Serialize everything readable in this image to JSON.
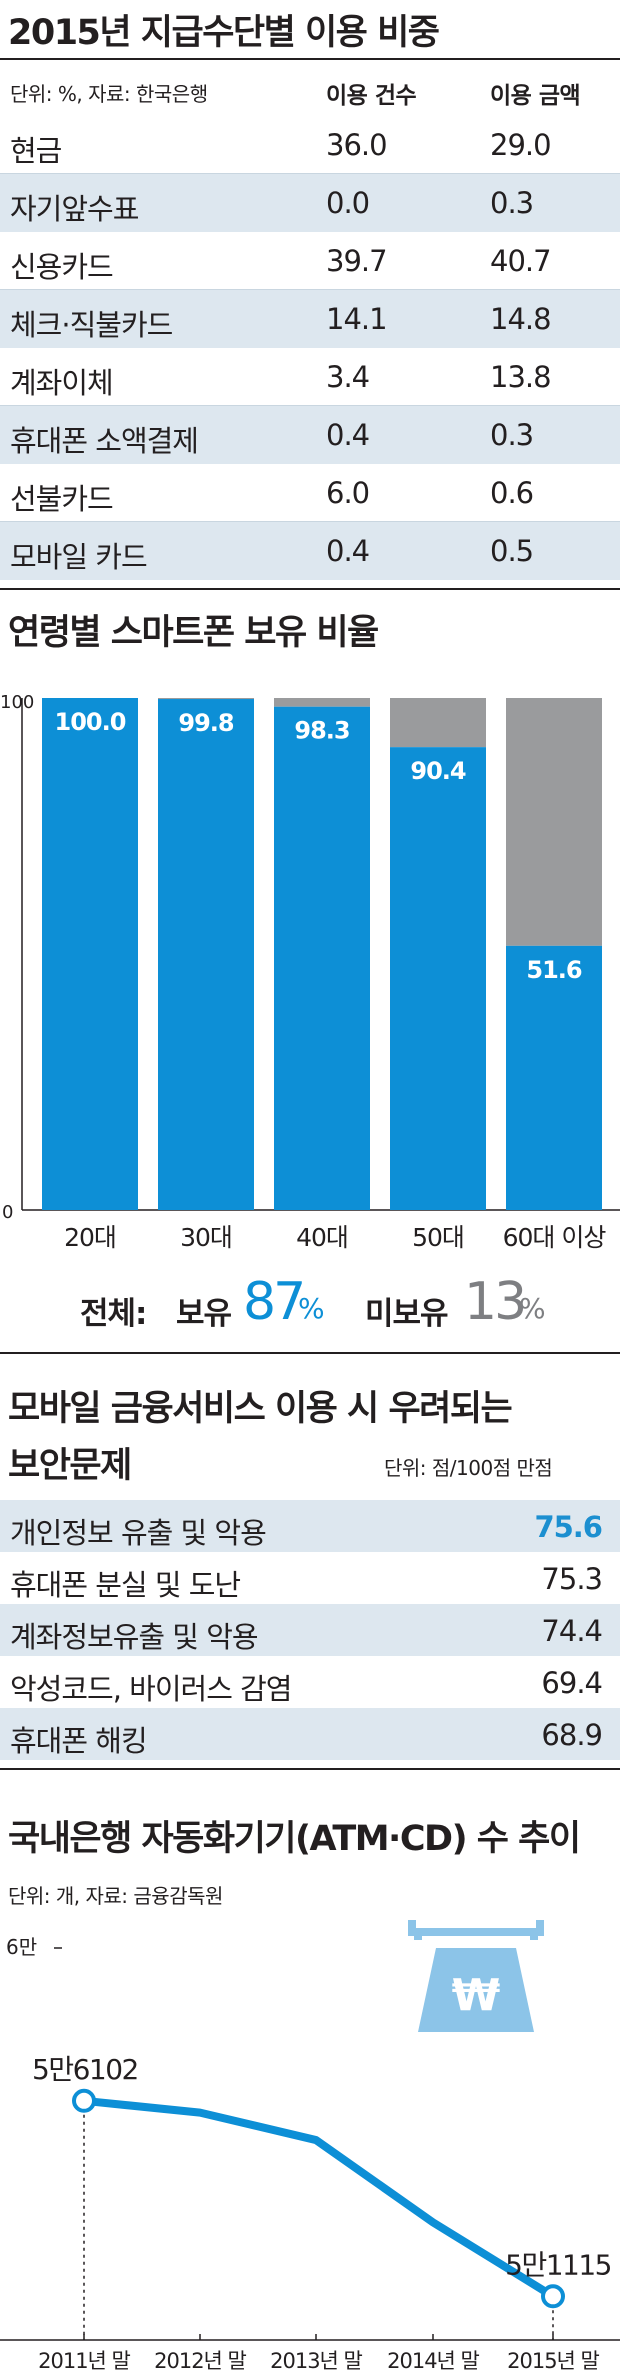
{
  "table1": {
    "title": "2015년 지급수단별 이용 비중",
    "source": "단위: %, 자료: 한국은행",
    "col1": "이용 건수",
    "col2": "이용 금액",
    "rows": [
      {
        "label": "현금",
        "count": "36.0",
        "amount": "29.0"
      },
      {
        "label": "자기앞수표",
        "count": "0.0",
        "amount": "0.3"
      },
      {
        "label": "신용카드",
        "count": "39.7",
        "amount": "40.7"
      },
      {
        "label": "체크·직불카드",
        "count": "14.1",
        "amount": "14.8"
      },
      {
        "label": "계좌이체",
        "count": "3.4",
        "amount": "13.8"
      },
      {
        "label": "휴대폰 소액결제",
        "count": "0.4",
        "amount": "0.3"
      },
      {
        "label": "선불카드",
        "count": "6.0",
        "amount": "0.6"
      },
      {
        "label": "모바일 카드",
        "count": "0.4",
        "amount": "0.5"
      }
    ]
  },
  "chart2": {
    "title": "연령별 스마트폰 보유 비율",
    "totals": {
      "label": "전체:",
      "own_label": "보유",
      "own_value": "87",
      "own_unit": "%",
      "non_label": "미보유",
      "non_value": "13",
      "non_unit": "%"
    }
  },
  "table3": {
    "title_line1": "모바일 금융서비스 이용 시 우려되는",
    "title_line2": "보안문제",
    "unit": "단위: 점/100점 만점",
    "rows": [
      {
        "label": "개인정보 유출 및 악용",
        "value": "75.6"
      },
      {
        "label": "휴대폰 분실 및 도난",
        "value": "75.3"
      },
      {
        "label": "계좌정보유출 및 악용",
        "value": "74.4"
      },
      {
        "label": "악성코드, 바이러스 감염",
        "value": "69.4"
      },
      {
        "label": "휴대폰 해킹",
        "value": "68.9"
      }
    ]
  },
  "chart4": {
    "title": "국내은행 자동화기기(ATM·CD) 수 추이",
    "source": "단위: 개, 자료: 금융감독원"
  },
  "chart_data": [
    {
      "type": "bar",
      "title": "연령별 스마트폰 보유 비율",
      "categories": [
        "20대",
        "30대",
        "40대",
        "50대",
        "60대 이상"
      ],
      "series": [
        {
          "values": [
            100.0,
            99.8,
            98.3,
            90.4,
            51.6
          ]
        }
      ],
      "stacked_remainder_to": 100,
      "ylim": [
        0,
        100
      ],
      "yticks": [
        "0",
        "100"
      ],
      "data_labels": [
        "100.0",
        "99.8",
        "98.3",
        "90.4",
        "51.6"
      ],
      "colors": {
        "owned": "#0d8fd6",
        "not_owned": "#9a9b9d"
      }
    },
    {
      "type": "line",
      "title": "국내은행 자동화기기(ATM·CD) 수 추이",
      "categories": [
        "2011년 말",
        "2012년 말",
        "2013년 말",
        "2014년 말",
        "2015년 말"
      ],
      "values": [
        56102,
        55800,
        55100,
        53000,
        51115
      ],
      "ylim": [
        50000,
        60000
      ],
      "ytick_label": "6만",
      "annotations": [
        {
          "index": 0,
          "text": "5만6102"
        },
        {
          "index": 4,
          "text": "5만1115"
        }
      ],
      "colors": {
        "line": "#0d8fd6",
        "icon": "#8cc4e8"
      },
      "icon": "atm-won-icon",
      "icon_symbol": "₩"
    }
  ]
}
